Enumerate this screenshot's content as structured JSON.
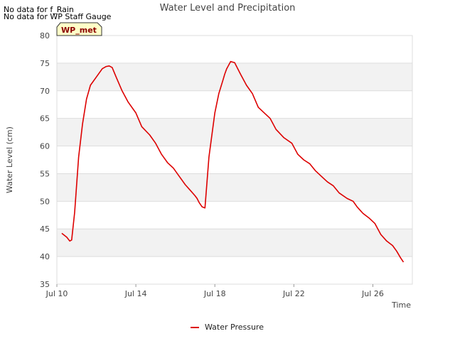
{
  "no_data_notes": [
    "No data for f_Rain",
    "No data for WP Staff Gauge"
  ],
  "site_badge": "WP_met",
  "colors": {
    "series": "#dd0000",
    "band": "#f2f2f2",
    "grid": "#dddddd",
    "badge_bg": "#ffffc8",
    "badge_text": "#8b0000"
  },
  "chart_data": {
    "type": "line",
    "title": "Water Level and Precipitation",
    "xlabel": "Time",
    "ylabel": "Water Level (cm)",
    "ylim": [
      35,
      80
    ],
    "yticks": [
      35,
      40,
      45,
      50,
      55,
      60,
      65,
      70,
      75,
      80
    ],
    "xlim": [
      "Jul 10",
      "Jul 28"
    ],
    "xticks": [
      {
        "label": "Jul 10",
        "day": 10
      },
      {
        "label": "Jul 14",
        "day": 14
      },
      {
        "label": "Jul 18",
        "day": 18
      },
      {
        "label": "Jul 22",
        "day": 22
      },
      {
        "label": "Jul 26",
        "day": 26
      }
    ],
    "x_domain_days": [
      10,
      28
    ],
    "grid": true,
    "legend_position": "bottom-center",
    "series": [
      {
        "name": "Water Pressure",
        "x_days": [
          10.25,
          10.5,
          10.65,
          10.75,
          10.9,
          11.1,
          11.3,
          11.5,
          11.7,
          12.0,
          12.3,
          12.5,
          12.65,
          12.8,
          13.0,
          13.3,
          13.6,
          13.9,
          14.0,
          14.3,
          14.7,
          15.0,
          15.3,
          15.6,
          15.9,
          16.2,
          16.5,
          16.8,
          17.0,
          17.1,
          17.2,
          17.35,
          17.5,
          17.7,
          18.0,
          18.2,
          18.4,
          18.5,
          18.6,
          18.8,
          19.0,
          19.3,
          19.6,
          19.9,
          20.2,
          20.5,
          20.8,
          21.1,
          21.5,
          21.9,
          22.2,
          22.5,
          22.8,
          23.1,
          23.4,
          23.7,
          24.0,
          24.3,
          24.7,
          25.0,
          25.2,
          25.5,
          25.8,
          26.1,
          26.4,
          26.7,
          27.0,
          27.2,
          27.4,
          27.55
        ],
        "values": [
          44.2,
          43.5,
          42.8,
          43.0,
          48.0,
          58.0,
          64.0,
          68.5,
          71.0,
          72.5,
          74.0,
          74.4,
          74.5,
          74.2,
          72.5,
          70.0,
          68.0,
          66.5,
          66.0,
          63.5,
          62.0,
          60.5,
          58.5,
          57.0,
          56.0,
          54.5,
          53.0,
          51.8,
          51.0,
          50.5,
          49.8,
          49.0,
          48.8,
          58.0,
          66.0,
          69.5,
          71.8,
          73.0,
          74.0,
          75.3,
          75.1,
          73.0,
          71.0,
          69.5,
          67.0,
          66.0,
          65.0,
          63.0,
          61.5,
          60.5,
          58.5,
          57.5,
          56.8,
          55.5,
          54.5,
          53.5,
          52.8,
          51.5,
          50.5,
          50.0,
          49.0,
          47.8,
          47.0,
          46.0,
          44.0,
          42.8,
          42.0,
          41.0,
          39.8,
          39.0
        ]
      }
    ]
  }
}
